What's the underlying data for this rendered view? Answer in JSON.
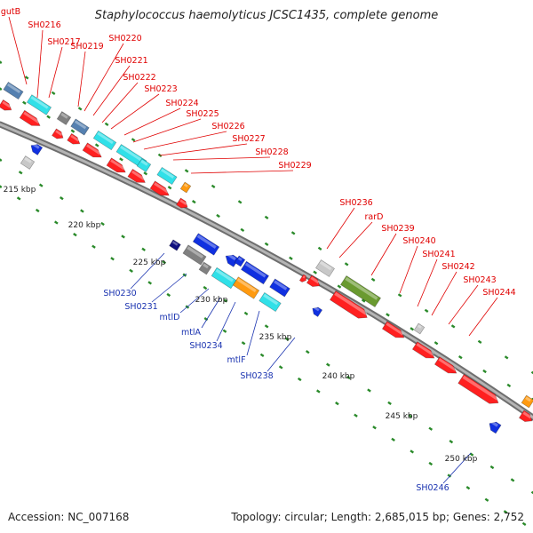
{
  "title": "Staphylococcus haemolyticus JCSC1435, complete genome",
  "footer": {
    "accession": "Accession: NC_007168",
    "topology": "Topology: circular; Length: 2,685,015 bp; Genes: 2,752"
  },
  "colors": {
    "forward_label": "#e00000",
    "reverse_label": "#1a33b0",
    "backbone": "#8a8a8a",
    "tick": "#2a8a2a",
    "red": "#ff2020",
    "cyan": "#30e0e8",
    "blue": "#1030e0",
    "gray": "#808080",
    "lightgray": "#c8c8c8",
    "steel": "#5580b0",
    "orange": "#ff9a10",
    "olive": "#6a9a30",
    "navy": "#101080"
  },
  "ticks": [
    "215 kbp",
    "220 kbp",
    "225 kbp",
    "230 kbp",
    "235 kbp",
    "240 kbp",
    "245 kbp",
    "250 kbp"
  ],
  "genes_forward": [
    "gutB",
    "SH0216",
    "SH0217",
    "SH0219",
    "SH0220",
    "SH0221",
    "SH0222",
    "SH0223",
    "SH0224",
    "SH0225",
    "SH0226",
    "SH0227",
    "SH0228",
    "SH0229",
    "SH0236",
    "rarD",
    "SH0239",
    "SH0240",
    "SH0241",
    "SH0242",
    "SH0243",
    "SH0244"
  ],
  "genes_reverse": [
    "SH0230",
    "SH0231",
    "mtlD",
    "mtlA",
    "SH0234",
    "mtlF",
    "SH0238",
    "SH0246"
  ]
}
